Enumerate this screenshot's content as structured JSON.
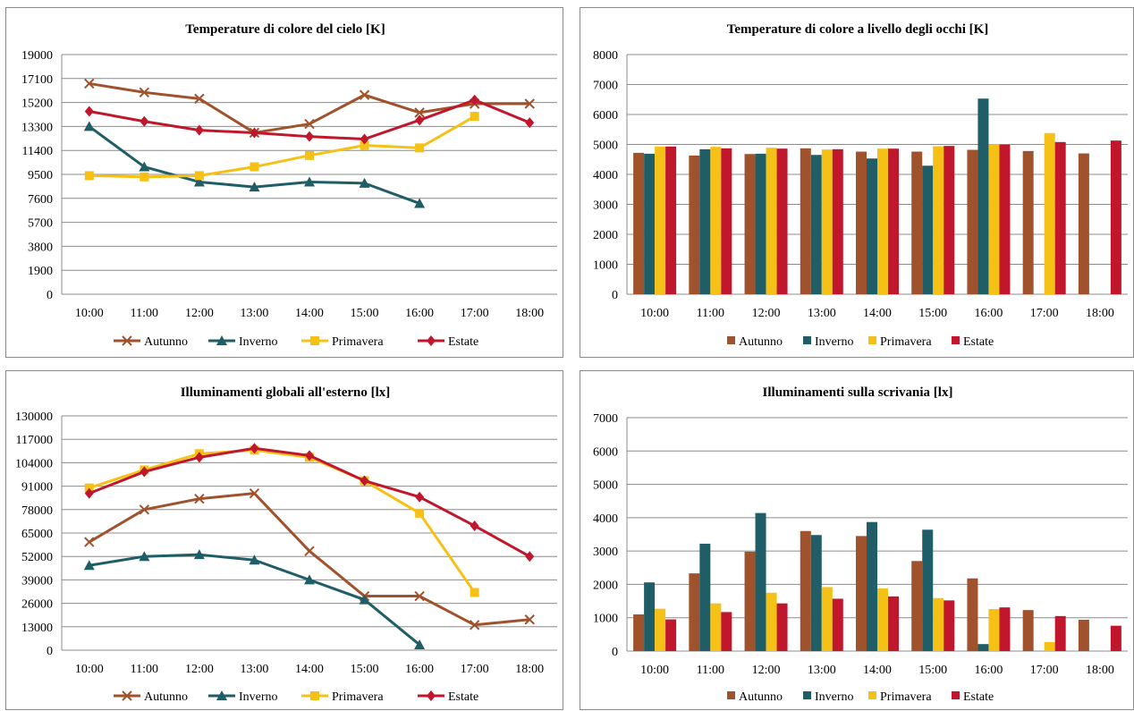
{
  "colors": {
    "Autunno": "#a0522d",
    "Inverno": "#1f5e66",
    "Primavera": "#f5c116",
    "Estate": "#c0172c"
  },
  "chart_data": [
    {
      "type": "line",
      "title": "Temperature di colore del cielo [K]",
      "categories": [
        "10:00",
        "11:00",
        "12:00",
        "13:00",
        "14:00",
        "15:00",
        "16:00",
        "17:00",
        "18:00"
      ],
      "yticks": [
        "0",
        "1900",
        "3800",
        "5700",
        "7600",
        "9500",
        "11400",
        "13300",
        "15200",
        "17100",
        "19000"
      ],
      "ylim": [
        0,
        19000
      ],
      "legend": "bottom",
      "series": [
        {
          "name": "Autunno",
          "marker": "x",
          "values": [
            16700,
            16000,
            15500,
            12800,
            13500,
            15800,
            14400,
            15100,
            15100
          ]
        },
        {
          "name": "Inverno",
          "marker": "triangle",
          "values": [
            13300,
            10100,
            8900,
            8500,
            8900,
            8800,
            7200,
            null,
            null
          ]
        },
        {
          "name": "Primavera",
          "marker": "square",
          "values": [
            9400,
            9300,
            9400,
            10100,
            11000,
            11800,
            11600,
            14100,
            null
          ]
        },
        {
          "name": "Estate",
          "marker": "diamond",
          "values": [
            14500,
            13700,
            13000,
            12800,
            12500,
            12300,
            13800,
            15400,
            13600
          ]
        }
      ]
    },
    {
      "type": "bar",
      "title": "Temperature di colore a livello degli occhi [K]",
      "categories": [
        "10:00",
        "11:00",
        "12:00",
        "13:00",
        "14:00",
        "15:00",
        "16:00",
        "17:00",
        "18:00"
      ],
      "yticks": [
        "0",
        "1000",
        "2000",
        "3000",
        "4000",
        "5000",
        "6000",
        "7000",
        "8000"
      ],
      "ylim": [
        0,
        8000
      ],
      "legend": "bottom",
      "series": [
        {
          "name": "Autunno",
          "values": [
            4720,
            4630,
            4680,
            4870,
            4760,
            4760,
            4820,
            4780,
            4700
          ]
        },
        {
          "name": "Inverno",
          "values": [
            4690,
            4840,
            4690,
            4650,
            4530,
            4290,
            6530,
            null,
            null
          ]
        },
        {
          "name": "Primavera",
          "values": [
            4930,
            4920,
            4890,
            4830,
            4860,
            4940,
            5010,
            5380,
            null
          ]
        },
        {
          "name": "Estate",
          "values": [
            4930,
            4870,
            4860,
            4840,
            4860,
            4950,
            4990,
            5080,
            5130
          ]
        }
      ]
    },
    {
      "type": "line",
      "title": "Illuminamenti globali all'esterno [lx]",
      "categories": [
        "10:00",
        "11:00",
        "12:00",
        "13:00",
        "14:00",
        "15:00",
        "16:00",
        "17:00",
        "18:00"
      ],
      "yticks": [
        "0",
        "13000",
        "26000",
        "39000",
        "52000",
        "65000",
        "78000",
        "91000",
        "104000",
        "117000",
        "130000"
      ],
      "ylim": [
        0,
        130000
      ],
      "legend": "bottom",
      "series": [
        {
          "name": "Autunno",
          "marker": "x",
          "values": [
            60000,
            78000,
            84000,
            87000,
            55000,
            30000,
            30000,
            14000,
            17000
          ]
        },
        {
          "name": "Inverno",
          "marker": "triangle",
          "values": [
            47000,
            52000,
            53000,
            50000,
            39000,
            28000,
            3000,
            null,
            null
          ]
        },
        {
          "name": "Primavera",
          "marker": "square",
          "values": [
            90000,
            100000,
            109000,
            111000,
            107000,
            94000,
            76000,
            32000,
            null
          ]
        },
        {
          "name": "Estate",
          "marker": "diamond",
          "values": [
            87000,
            99000,
            107000,
            112000,
            108000,
            94000,
            85000,
            69000,
            52000
          ]
        }
      ]
    },
    {
      "type": "bar",
      "title": "Illuminamenti sulla scrivania [lx]",
      "categories": [
        "10:00",
        "11:00",
        "12:00",
        "13:00",
        "14:00",
        "15:00",
        "16:00",
        "17:00",
        "18:00"
      ],
      "yticks": [
        "0",
        "1000",
        "2000",
        "3000",
        "4000",
        "5000",
        "6000",
        "7000"
      ],
      "ylim": [
        0,
        7000
      ],
      "legend": "bottom",
      "series": [
        {
          "name": "Autunno",
          "values": [
            1100,
            2330,
            2980,
            3600,
            3450,
            2700,
            2180,
            1230,
            940
          ]
        },
        {
          "name": "Inverno",
          "values": [
            2060,
            3220,
            4140,
            3480,
            3870,
            3640,
            210,
            null,
            null
          ]
        },
        {
          "name": "Primavera",
          "values": [
            1270,
            1430,
            1750,
            1920,
            1880,
            1590,
            1260,
            270,
            null
          ]
        },
        {
          "name": "Estate",
          "values": [
            950,
            1170,
            1430,
            1570,
            1640,
            1520,
            1310,
            1050,
            760
          ]
        }
      ]
    }
  ]
}
